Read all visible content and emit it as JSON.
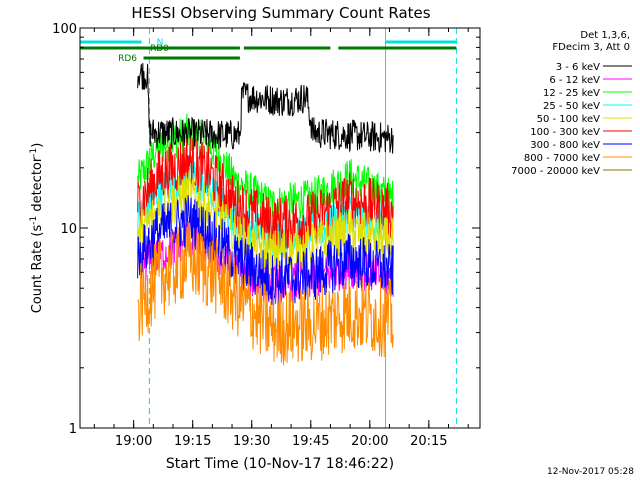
{
  "chart_data": {
    "type": "line",
    "title": "HESSI Observing Summary Count Rates",
    "ylabel_main": "Count Rate (s",
    "ylabel_sup": "-1",
    "ylabel_end": " detector",
    "ylabel_close": ")",
    "xlabel": "Start Time (10-Nov-17 18:46:22)",
    "xscale": "time",
    "yscale": "log",
    "xlim": [
      "18:46:22",
      "20:28:00"
    ],
    "ylim": [
      1,
      100
    ],
    "x_ticks": [
      "19:00",
      "19:15",
      "19:30",
      "19:45",
      "20:00",
      "20:15"
    ],
    "y_ticks": [
      "1",
      "10",
      "100"
    ],
    "legend_header": [
      "Det 1,3,6,",
      "FDecim 3, Att 0"
    ],
    "footer_date": "12-Nov-2017 05:28",
    "flags": [
      {
        "label": "N",
        "color": "#00e0e0",
        "segments": [
          [
            "18:46:22",
            "19:02:00"
          ],
          [
            "20:04:00",
            "20:22:00"
          ]
        ]
      },
      {
        "label": "RD0",
        "color": "#007800",
        "segments": [
          [
            "18:46:22",
            "19:27:00"
          ],
          [
            "19:28:00",
            "19:50:00"
          ],
          [
            "19:52:00",
            "20:22:00"
          ]
        ]
      },
      {
        "label": "RD6",
        "color": "#007800",
        "segments": [
          [
            "19:02:30",
            "19:27:00"
          ]
        ]
      }
    ],
    "vlines": [
      {
        "time": "18:46:22",
        "color": "#00e0e0",
        "style": "solid"
      },
      {
        "time": "19:04:00",
        "color": "#00e0e0",
        "style": "dashed"
      },
      {
        "time": "20:04:00",
        "color": "#00e0e0",
        "style": "solid"
      },
      {
        "time": "20:22:00",
        "color": "#00e0e0",
        "style": "dashed"
      }
    ],
    "noise_amplitude": [
      0.08,
      0.1,
      0.1,
      0.1,
      0.12,
      0.14,
      0.14,
      0.2,
      0.25
    ],
    "series": [
      {
        "name": "3 - 6 keV",
        "color": "#000000",
        "points": [
          [
            "19:01:00",
            60
          ],
          [
            "19:03:30",
            58
          ],
          [
            "19:04:00",
            30
          ],
          [
            "19:27:00",
            29
          ],
          [
            "19:27:30",
            46
          ],
          [
            "19:38:00",
            43
          ],
          [
            "19:44:00",
            45
          ],
          [
            "19:45:30",
            30
          ],
          [
            "20:06:00",
            28
          ]
        ]
      },
      {
        "name": "6 - 12 keV",
        "color": "#ff00ff",
        "points": [
          [
            "19:01:00",
            6.5
          ],
          [
            "19:08:00",
            7.5
          ],
          [
            "19:14:00",
            9
          ],
          [
            "19:20:00",
            7.5
          ],
          [
            "19:26:00",
            6
          ],
          [
            "19:35:00",
            5.2
          ],
          [
            "19:45:00",
            5.5
          ],
          [
            "19:55:00",
            6.3
          ],
          [
            "20:06:00",
            5.5
          ]
        ]
      },
      {
        "name": "12 - 25 keV",
        "color": "#00ff00",
        "points": [
          [
            "19:01:00",
            17
          ],
          [
            "19:06:00",
            25
          ],
          [
            "19:14:00",
            30
          ],
          [
            "19:20:00",
            25
          ],
          [
            "19:26:00",
            17
          ],
          [
            "19:35:00",
            13
          ],
          [
            "19:45:00",
            14
          ],
          [
            "19:55:00",
            18
          ],
          [
            "20:06:00",
            14
          ]
        ]
      },
      {
        "name": "25 - 50 keV",
        "color": "#00ffff",
        "points": [
          [
            "19:01:00",
            11
          ],
          [
            "19:06:00",
            15
          ],
          [
            "19:14:00",
            19
          ],
          [
            "19:20:00",
            15
          ],
          [
            "19:26:00",
            11
          ],
          [
            "19:35:00",
            9
          ],
          [
            "19:45:00",
            9.5
          ],
          [
            "19:55:00",
            12
          ],
          [
            "20:06:00",
            10
          ]
        ]
      },
      {
        "name": "50 - 100 keV",
        "color": "#e0e000",
        "points": [
          [
            "19:01:00",
            9
          ],
          [
            "19:06:00",
            12
          ],
          [
            "19:14:00",
            15
          ],
          [
            "19:20:00",
            12
          ],
          [
            "19:26:00",
            9
          ],
          [
            "19:35:00",
            7.5
          ],
          [
            "19:45:00",
            8
          ],
          [
            "19:55:00",
            9.5
          ],
          [
            "20:06:00",
            8.5
          ]
        ]
      },
      {
        "name": "100 - 300 keV",
        "color": "#ff0000",
        "points": [
          [
            "19:01:00",
            13
          ],
          [
            "19:06:00",
            18
          ],
          [
            "19:14:00",
            22
          ],
          [
            "19:20:00",
            18
          ],
          [
            "19:26:00",
            13
          ],
          [
            "19:35:00",
            10.5
          ],
          [
            "19:45:00",
            11
          ],
          [
            "19:55:00",
            14
          ],
          [
            "20:06:00",
            12
          ]
        ]
      },
      {
        "name": "300 - 800 keV",
        "color": "#0000ff",
        "points": [
          [
            "19:01:00",
            7
          ],
          [
            "19:06:00",
            9.5
          ],
          [
            "19:14:00",
            11
          ],
          [
            "19:20:00",
            9
          ],
          [
            "19:26:00",
            7
          ],
          [
            "19:35:00",
            5.5
          ],
          [
            "19:45:00",
            5.8
          ],
          [
            "19:55:00",
            7
          ],
          [
            "20:06:00",
            6
          ]
        ]
      },
      {
        "name": "800 - 7000 keV",
        "color": "#ff8c00",
        "points": [
          [
            "19:01:00",
            4
          ],
          [
            "19:06:00",
            5.5
          ],
          [
            "19:14:00",
            7
          ],
          [
            "19:20:00",
            6
          ],
          [
            "19:26:00",
            4.5
          ],
          [
            "19:35:00",
            3.2
          ],
          [
            "19:45:00",
            3.3
          ],
          [
            "19:55:00",
            3.8
          ],
          [
            "20:06:00",
            3.5
          ]
        ]
      },
      {
        "name": "7000 - 20000 keV",
        "color": "#8b7000",
        "points": []
      }
    ]
  }
}
